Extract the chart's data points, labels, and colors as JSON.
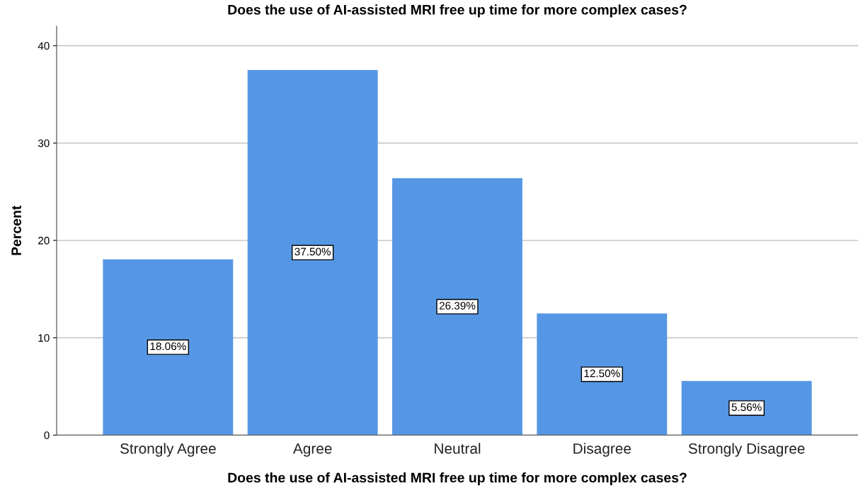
{
  "chart_data": {
    "type": "bar",
    "title": "Does the use of AI-assisted MRI free up time for more complex cases?",
    "xlabel": "Does the use of AI-assisted MRI free up time for more complex cases?",
    "ylabel": "Percent",
    "categories": [
      "Strongly Agree",
      "Agree",
      "Neutral",
      "Disagree",
      "Strongly Disagree"
    ],
    "values": [
      18.06,
      37.5,
      26.39,
      12.5,
      5.56
    ],
    "value_labels": [
      "18.06%",
      "37.50%",
      "26.39%",
      "12.50%",
      "5.56%"
    ],
    "color": "#5597e5",
    "ylim": [
      0,
      42
    ],
    "yticks": [
      0,
      10,
      20,
      30,
      40
    ],
    "grid": "y"
  }
}
